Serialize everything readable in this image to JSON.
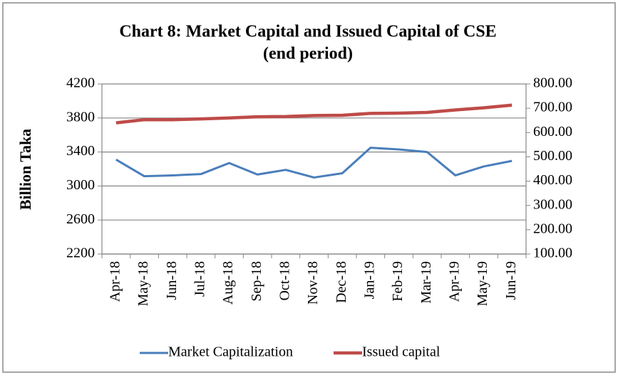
{
  "chart_data": {
    "type": "line",
    "title": "Chart 8: Market Capital and Issued Capital of CSE",
    "subtitle": "(end period)",
    "y_label": "Billion Taka",
    "categories": [
      "Apr-18",
      "May-18",
      "Jun-18",
      "Jul-18",
      "Aug-18",
      "Sep-18",
      "Oct-18",
      "Nov-18",
      "Dec-18",
      "Jan-19",
      "Feb-19",
      "Mar-19",
      "Apr-19",
      "May-19",
      "Jun-19"
    ],
    "series": [
      {
        "name": "Market Capitalization",
        "color": "#4a7ebb",
        "values": [
          3310,
          3115,
          3125,
          3140,
          3270,
          3135,
          3190,
          3100,
          3150,
          3450,
          3430,
          3400,
          3125,
          3230,
          3295
        ]
      },
      {
        "name": "Issued capital",
        "color": "#be4b48",
        "axis": "y2",
        "values": [
          640,
          653,
          653,
          656,
          660,
          665,
          666,
          670,
          671,
          679,
          680,
          683,
          693,
          702,
          713
        ]
      }
    ],
    "ylim": [
      2200,
      4200
    ],
    "yticks": [
      2200,
      2600,
      3000,
      3400,
      3800,
      4200
    ],
    "y2lim": [
      100,
      800
    ],
    "y2ticks": [
      {
        "value": 100,
        "label": "100.00"
      },
      {
        "value": 200,
        "label": "200.00"
      },
      {
        "value": 300,
        "label": "300.00"
      },
      {
        "value": 400,
        "label": "400.00"
      },
      {
        "value": 500,
        "label": "500.00"
      },
      {
        "value": 600,
        "label": "600.00"
      },
      {
        "value": 700,
        "label": "700.00"
      },
      {
        "value": 800,
        "label": "800.00"
      }
    ],
    "grid": true,
    "legend": "bottom"
  }
}
